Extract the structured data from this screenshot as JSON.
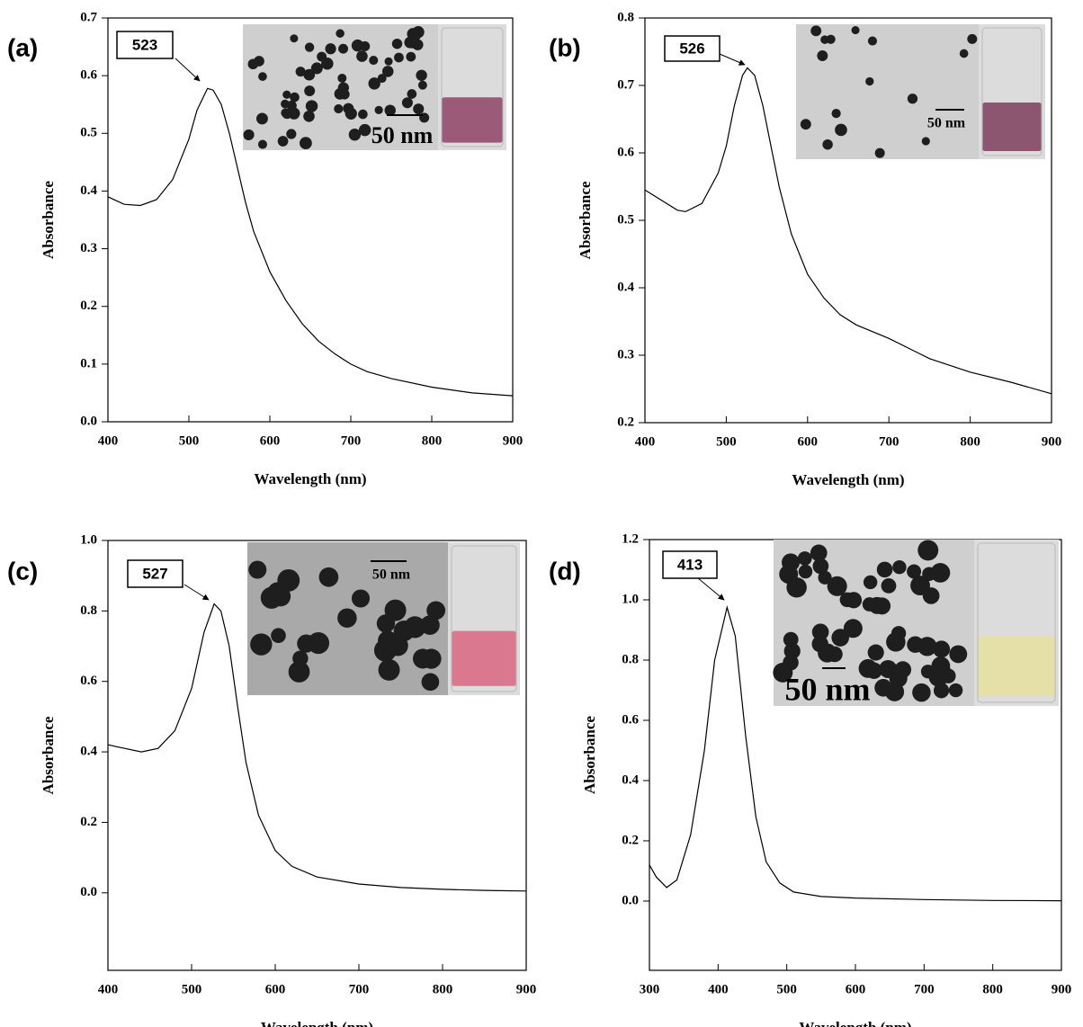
{
  "chart_data": [
    {
      "type": "line",
      "panel_label": "(a)",
      "annotation": "523",
      "inset_scale_label": "50 nm",
      "x_label": "Wavelength (nm)",
      "y_label": "Absorbance",
      "color": "#000000",
      "x": [
        400,
        420,
        440,
        460,
        480,
        500,
        510,
        523,
        530,
        540,
        550,
        560,
        570,
        580,
        600,
        620,
        640,
        660,
        680,
        700,
        720,
        750,
        800,
        850,
        900
      ],
      "values": [
        0.39,
        0.377,
        0.375,
        0.385,
        0.42,
        0.49,
        0.54,
        0.578,
        0.575,
        0.55,
        0.5,
        0.44,
        0.38,
        0.33,
        0.26,
        0.21,
        0.17,
        0.14,
        0.118,
        0.1,
        0.087,
        0.075,
        0.06,
        0.05,
        0.045
      ],
      "xlim": [
        400,
        900
      ],
      "ylim": [
        0,
        0.7
      ],
      "xticks": [
        400,
        500,
        600,
        700,
        800,
        900
      ],
      "yticks": [
        {
          "value": 0,
          "label": "0.0"
        },
        0.1,
        0.2,
        0.3,
        0.4,
        0.5,
        0.6,
        0.7
      ]
    },
    {
      "type": "line",
      "panel_label": "(b)",
      "annotation": "526",
      "inset_scale_label": "50 nm",
      "x_label": "Wavelength (nm)",
      "y_label": "Absorbance",
      "color": "#000000",
      "x": [
        400,
        420,
        440,
        450,
        470,
        490,
        500,
        510,
        520,
        526,
        535,
        545,
        555,
        565,
        580,
        600,
        620,
        640,
        660,
        700,
        750,
        800,
        850,
        900
      ],
      "values": [
        0.545,
        0.53,
        0.515,
        0.513,
        0.525,
        0.57,
        0.61,
        0.67,
        0.715,
        0.726,
        0.715,
        0.67,
        0.61,
        0.55,
        0.48,
        0.42,
        0.385,
        0.36,
        0.345,
        0.325,
        0.295,
        0.275,
        0.26,
        0.243
      ],
      "xlim": [
        400,
        900
      ],
      "ylim": [
        0.2,
        0.8
      ],
      "xticks": [
        400,
        500,
        600,
        700,
        800,
        900
      ],
      "yticks": [
        0.2,
        0.3,
        0.4,
        0.5,
        0.6,
        0.7,
        0.8
      ]
    },
    {
      "type": "line",
      "panel_label": "(c)",
      "annotation": "527",
      "inset_scale_label": "50 nm",
      "x_label": "Wavelength (nm)",
      "y_label": "Absorbance",
      "color": "#000000",
      "x": [
        400,
        420,
        440,
        460,
        480,
        500,
        515,
        527,
        535,
        545,
        555,
        565,
        580,
        600,
        620,
        650,
        700,
        750,
        800,
        850,
        900
      ],
      "values": [
        0.42,
        0.41,
        0.4,
        0.41,
        0.46,
        0.58,
        0.74,
        0.82,
        0.8,
        0.7,
        0.53,
        0.37,
        0.22,
        0.12,
        0.075,
        0.045,
        0.025,
        0.015,
        0.01,
        0.007,
        0.005
      ],
      "xlim": [
        400,
        900
      ],
      "ylim": [
        -0.22,
        1.0
      ],
      "xticks": [
        400,
        500,
        600,
        700,
        800,
        900
      ],
      "yticks": [
        {
          "value": 0,
          "label": "0.0"
        },
        0.2,
        0.4,
        0.6,
        0.8,
        {
          "value": 1,
          "label": "1.0"
        }
      ]
    },
    {
      "type": "line",
      "panel_label": "(d)",
      "annotation": "413",
      "inset_scale_label": "50 nm",
      "x_label": "Wavelength (nm)",
      "y_label": "Absorbance",
      "color": "#000000",
      "x": [
        300,
        310,
        325,
        340,
        360,
        380,
        395,
        413,
        425,
        440,
        455,
        470,
        490,
        510,
        550,
        600,
        700,
        800,
        900
      ],
      "values": [
        0.12,
        0.08,
        0.045,
        0.07,
        0.22,
        0.5,
        0.8,
        0.975,
        0.88,
        0.55,
        0.28,
        0.13,
        0.06,
        0.03,
        0.015,
        0.01,
        0.005,
        0.002,
        0.001
      ],
      "xlim": [
        300,
        900
      ],
      "ylim": [
        -0.23,
        1.2
      ],
      "xticks": [
        300,
        400,
        500,
        600,
        700,
        800,
        900
      ],
      "yticks": [
        {
          "value": 0,
          "label": "0.0"
        },
        0.2,
        0.4,
        0.6,
        0.8,
        {
          "value": 1,
          "label": "1.0"
        },
        1.2
      ]
    }
  ]
}
